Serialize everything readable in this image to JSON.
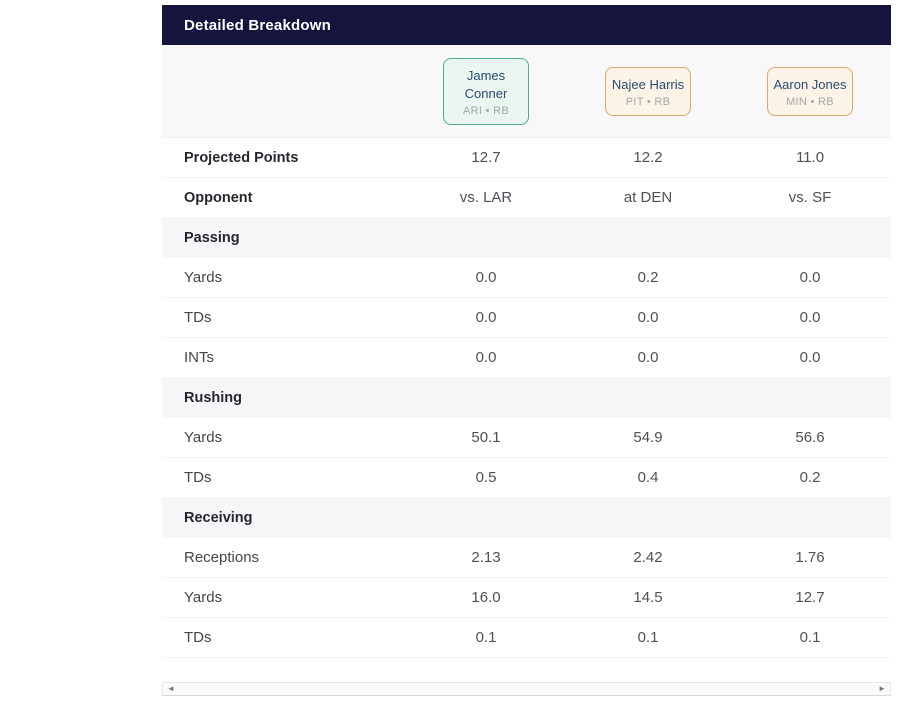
{
  "header": {
    "title": "Detailed Breakdown"
  },
  "players": [
    {
      "name": "James Conner",
      "meta": "ARI • RB",
      "accent": "green"
    },
    {
      "name": "Najee Harris",
      "meta": "PIT • RB",
      "accent": "orange"
    },
    {
      "name": "Aaron Jones",
      "meta": "MIN • RB",
      "accent": "orange"
    }
  ],
  "rows": [
    {
      "type": "stat",
      "label": "Projected Points",
      "values": [
        "12.7",
        "12.2",
        "11.0"
      ]
    },
    {
      "type": "stat",
      "label": "Opponent",
      "values": [
        "vs. LAR",
        "at DEN",
        "vs. SF"
      ]
    },
    {
      "type": "section",
      "label": "Passing"
    },
    {
      "type": "stat",
      "label": "Yards",
      "values": [
        "0.0",
        "0.2",
        "0.0"
      ]
    },
    {
      "type": "stat",
      "label": "TDs",
      "values": [
        "0.0",
        "0.0",
        "0.0"
      ]
    },
    {
      "type": "stat",
      "label": "INTs",
      "values": [
        "0.0",
        "0.0",
        "0.0"
      ]
    },
    {
      "type": "section",
      "label": "Rushing"
    },
    {
      "type": "stat",
      "label": "Yards",
      "values": [
        "50.1",
        "54.9",
        "56.6"
      ]
    },
    {
      "type": "stat",
      "label": "TDs",
      "values": [
        "0.5",
        "0.4",
        "0.2"
      ]
    },
    {
      "type": "section",
      "label": "Receiving"
    },
    {
      "type": "stat",
      "label": "Receptions",
      "values": [
        "2.13",
        "2.42",
        "1.76"
      ]
    },
    {
      "type": "stat",
      "label": "Yards",
      "values": [
        "16.0",
        "14.5",
        "12.7"
      ]
    },
    {
      "type": "stat",
      "label": "TDs",
      "values": [
        "0.1",
        "0.1",
        "0.1"
      ]
    }
  ],
  "scrollbar": {
    "left_glyph": "◄",
    "right_glyph": "►"
  },
  "colors": {
    "header_bg": "#14143c",
    "header_text": "#ffffff",
    "card_green_border": "#4fae85",
    "card_green_bg": "#e9f7f0",
    "card_orange_border": "#dca76a",
    "card_orange_bg": "#fdf4e7",
    "player_name_text": "#2c4a72",
    "section_row_bg": "#f6f6f8",
    "value_text": "#4c5157"
  }
}
